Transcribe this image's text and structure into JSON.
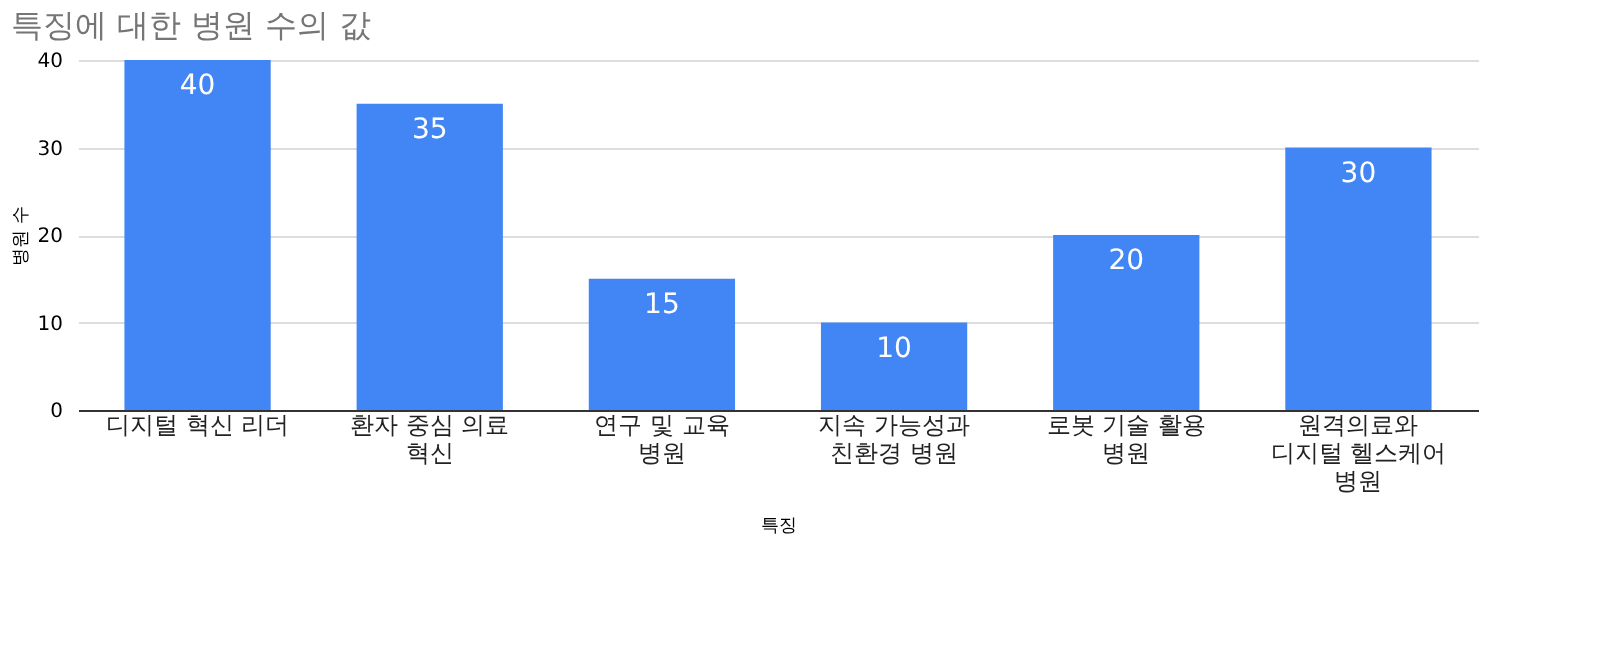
{
  "chart_data": {
    "type": "bar",
    "title": "특징에 대한 병원 수의 값",
    "xlabel": "특징",
    "ylabel": "병원 수",
    "categories": [
      "디지털 혁신 리더",
      "환자 중심 의료 혁신",
      "연구 및 교육 병원",
      "지속 가능성과 친환경 병원",
      "로봇 기술 활용 병원",
      "원격의료와 디지털 헬스케어 병원"
    ],
    "values": [
      40,
      35,
      15,
      10,
      20,
      30
    ],
    "color": "#4285f4",
    "ylim": [
      0,
      40
    ],
    "yticks": [
      0,
      10,
      20,
      30,
      40
    ],
    "grid": "y",
    "data_labels": true
  }
}
